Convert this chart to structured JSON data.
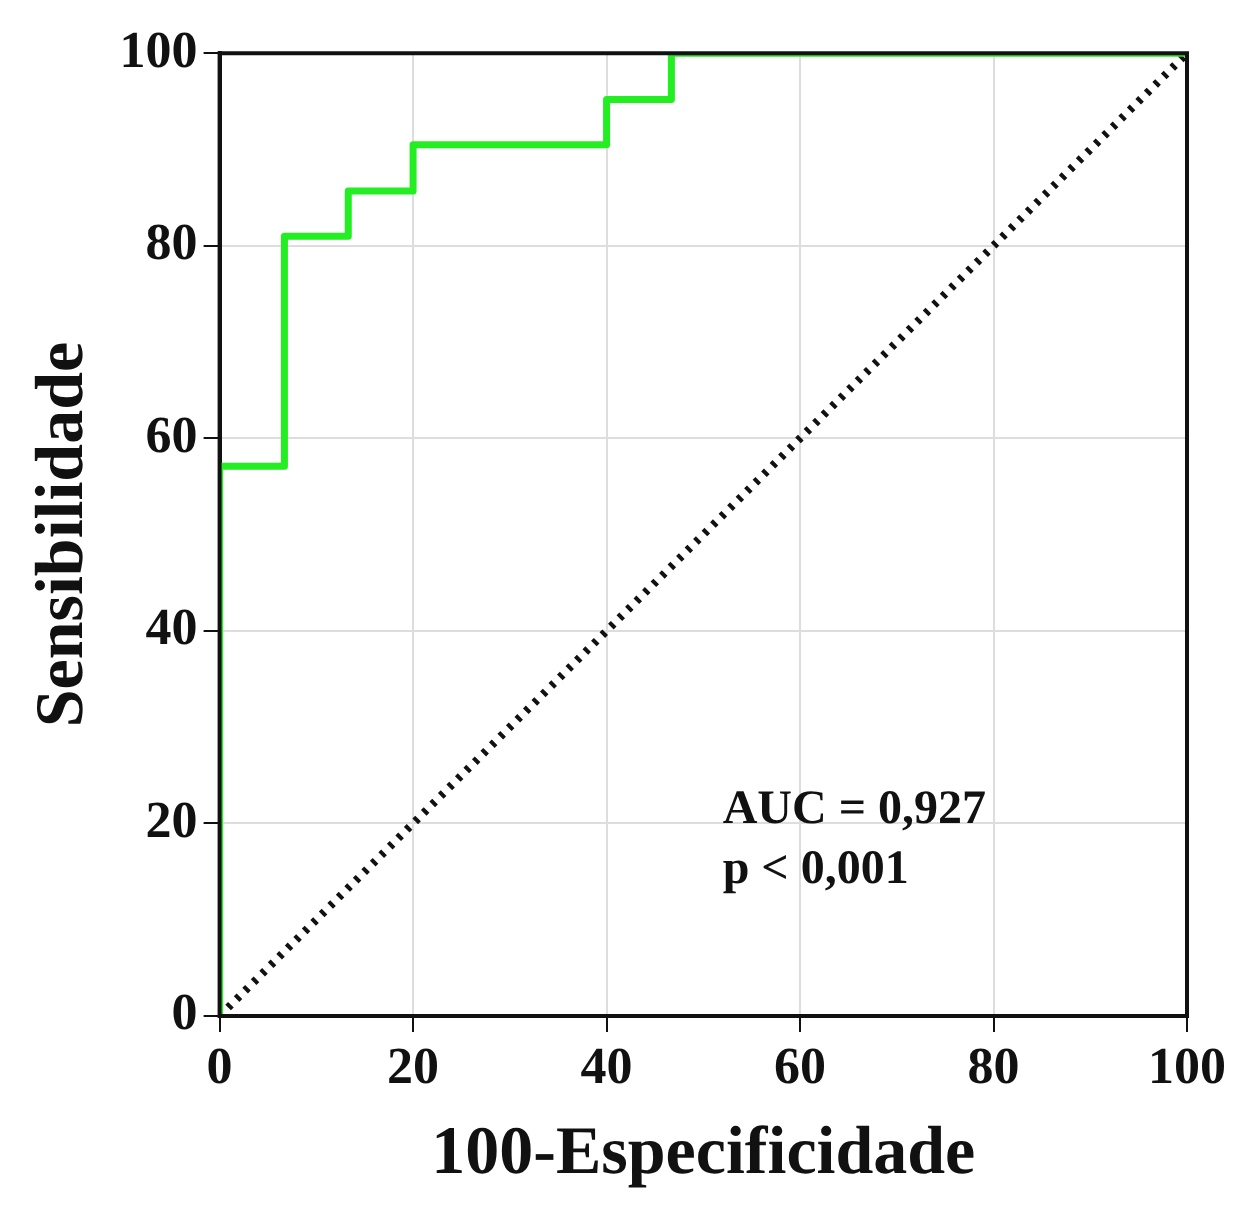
{
  "chart_data": {
    "type": "line",
    "xlabel": "100-Especificidade",
    "ylabel": "Sensibilidade",
    "series": [
      {
        "color": "#22ee22",
        "x": [
          0,
          0,
          6.7,
          6.7,
          13.3,
          13.3,
          20,
          20,
          40,
          40,
          46.7,
          46.7,
          100
        ],
        "values": [
          0,
          57.1,
          57.1,
          81,
          81,
          85.7,
          85.7,
          90.5,
          90.5,
          95.2,
          95.2,
          100,
          100
        ],
        "line_style": "solid"
      },
      {
        "color": "#111111",
        "x": [
          0,
          100
        ],
        "values": [
          0,
          100
        ],
        "line_style": "dotted"
      }
    ],
    "xlim": [
      0,
      100
    ],
    "ylim": [
      0,
      100
    ],
    "xticks": [
      0,
      20,
      40,
      60,
      80,
      100
    ],
    "yticks": [
      0,
      20,
      40,
      60,
      80,
      100
    ],
    "grid": true,
    "legend": false,
    "marker": "none",
    "annotations": [
      "AUC = 0,927",
      "p < 0,001"
    ]
  }
}
